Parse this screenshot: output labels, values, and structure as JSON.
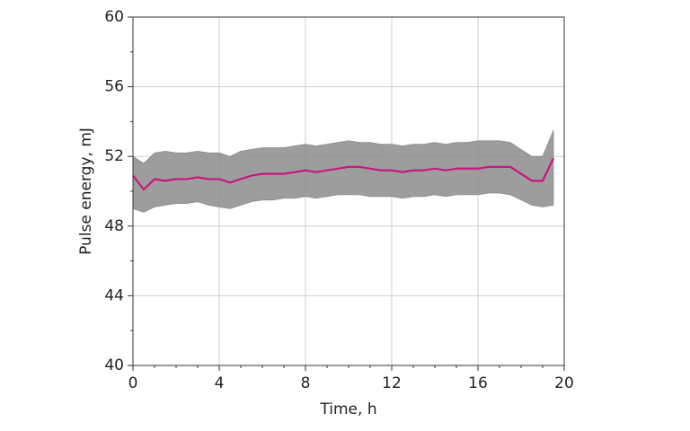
{
  "chart_data": {
    "type": "line",
    "xlabel": "Time, h",
    "ylabel": "Pulse energy, mJ",
    "xlim": [
      0,
      20
    ],
    "xticks": [
      0,
      4,
      8,
      12,
      16,
      20
    ],
    "xticks_minor": [
      1,
      2,
      3,
      5,
      6,
      7,
      9,
      10,
      11,
      13,
      14,
      15,
      17,
      18,
      19
    ],
    "ylim": [
      40,
      60
    ],
    "yticks": [
      40,
      44,
      48,
      52,
      56,
      60
    ],
    "yticks_minor": [
      42,
      46,
      50,
      54,
      58
    ],
    "grid": true,
    "x": [
      0,
      0.5,
      1,
      1.5,
      2,
      2.5,
      3,
      3.5,
      4,
      4.5,
      5,
      5.5,
      6,
      6.5,
      7,
      7.5,
      8,
      8.5,
      9,
      9.5,
      10,
      10.5,
      11,
      11.5,
      12,
      12.5,
      13,
      13.5,
      14,
      14.5,
      15,
      15.5,
      16,
      16.5,
      17,
      17.5,
      18,
      18.5,
      19,
      19.5
    ],
    "series": [
      {
        "color": "#8c8c8c",
        "lower": [
          49.0,
          48.8,
          49.1,
          49.2,
          49.3,
          49.3,
          49.4,
          49.2,
          49.1,
          49.0,
          49.2,
          49.4,
          49.5,
          49.5,
          49.6,
          49.6,
          49.7,
          49.6,
          49.7,
          49.8,
          49.8,
          49.8,
          49.7,
          49.7,
          49.7,
          49.6,
          49.7,
          49.7,
          49.8,
          49.7,
          49.8,
          49.8,
          49.8,
          49.9,
          49.9,
          49.8,
          49.5,
          49.2,
          49.1,
          49.2
        ],
        "upper": [
          52.0,
          51.6,
          52.2,
          52.3,
          52.2,
          52.2,
          52.3,
          52.2,
          52.2,
          52.0,
          52.3,
          52.4,
          52.5,
          52.5,
          52.5,
          52.6,
          52.7,
          52.6,
          52.7,
          52.8,
          52.9,
          52.8,
          52.8,
          52.7,
          52.7,
          52.6,
          52.7,
          52.7,
          52.8,
          52.7,
          52.8,
          52.8,
          52.9,
          52.9,
          52.9,
          52.8,
          52.4,
          52.0,
          52.0,
          53.5
        ]
      },
      {
        "color": "#c8177f",
        "values": [
          50.9,
          50.1,
          50.7,
          50.6,
          50.7,
          50.7,
          50.8,
          50.7,
          50.7,
          50.5,
          50.7,
          50.9,
          51.0,
          51.0,
          51.0,
          51.1,
          51.2,
          51.1,
          51.2,
          51.3,
          51.4,
          51.4,
          51.3,
          51.2,
          51.2,
          51.1,
          51.2,
          51.2,
          51.3,
          51.2,
          51.3,
          51.3,
          51.3,
          51.4,
          51.4,
          51.4,
          51.0,
          50.6,
          50.6,
          51.9
        ]
      }
    ]
  }
}
